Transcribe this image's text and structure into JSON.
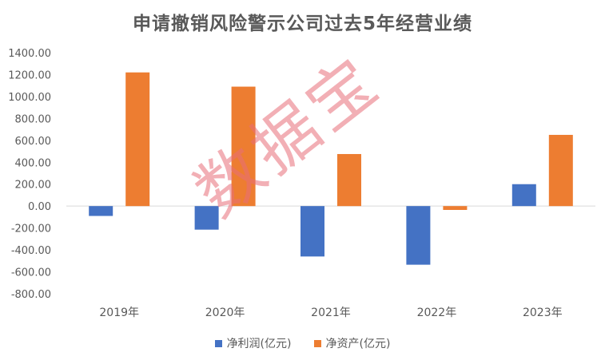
{
  "title": "申请撤销风险警示公司过去5年经营业绩",
  "watermark": "数据宝",
  "colors": {
    "net_profit": "#4472C4",
    "net_assets": "#ED7D31",
    "axis_text": "#595959",
    "gridline": "#D9D9D9"
  },
  "chart_data": {
    "type": "bar",
    "title": "申请撤销风险警示公司过去5年经营业绩",
    "categories": [
      "2019年",
      "2020年",
      "2021年",
      "2022年",
      "2023年"
    ],
    "series": [
      {
        "name": "净利润(亿元)",
        "color": "#4472C4",
        "values": [
          -90,
          -215,
          -460,
          -535,
          200
        ]
      },
      {
        "name": "净资产(亿元)",
        "color": "#ED7D31",
        "values": [
          1220,
          1090,
          475,
          -35,
          650
        ]
      }
    ],
    "ylim": [
      -800,
      1400
    ],
    "ytick_step": 200,
    "ytick_labels": [
      "1400.00",
      "1200.00",
      "1000.00",
      "800.00",
      "600.00",
      "400.00",
      "200.00",
      "0.00",
      "-200.00",
      "-400.00",
      "-600.00",
      "-800.00"
    ],
    "xlabel": "",
    "ylabel": "",
    "grid": false,
    "legend_position": "bottom"
  }
}
